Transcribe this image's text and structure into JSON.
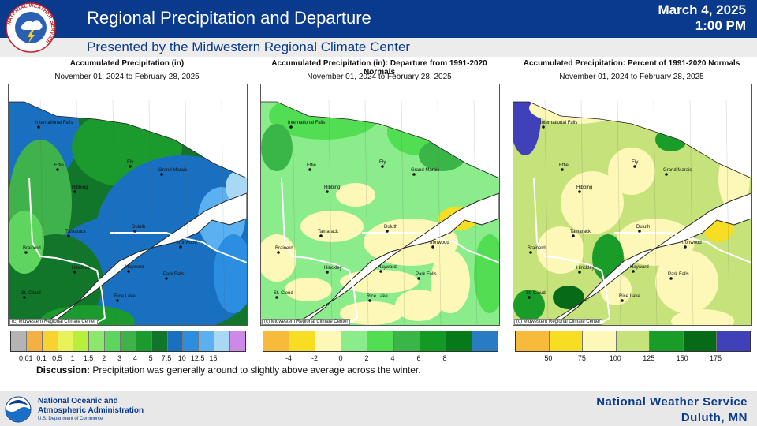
{
  "header": {
    "title": "Regional Precipitation and Departure",
    "date": "March 4, 2025",
    "time": "1:00 PM",
    "subtitle": "Presented by the Midwestern Regional Climate Center",
    "logo_text": "NATIONAL WEATHER SERVICE"
  },
  "panels": [
    {
      "title": "Accumulated Precipitation (in)",
      "dates": "November 01, 2024 to February 28, 2025",
      "credit": "(c) Midwestern Regional Climate Center",
      "legend_colors": [
        "#b4b4b4",
        "#f4b042",
        "#f7d230",
        "#e8f25a",
        "#b8ee3c",
        "#8ce86a",
        "#5ed55e",
        "#3fb24c",
        "#1b9a2e",
        "#11762a",
        "#1a70c0",
        "#2b8ee0",
        "#5ab0f0",
        "#a8d8f4",
        "#cc8ae6"
      ],
      "legend_labels": [
        "0.01",
        "0.1",
        "0.5",
        "1",
        "1.5",
        "2",
        "3",
        "4",
        "5",
        "7.5",
        "10",
        "12.5",
        "15"
      ]
    },
    {
      "title": "Accumulated Precipitation (in): Departure from 1991-2020 Normals",
      "dates": "November 01, 2024 to February 28, 2025",
      "credit": "(c) Midwestern Regional Climate Center",
      "legend_colors": [
        "#f8ba3a",
        "#f8de22",
        "#fdf7b8",
        "#8aec8a",
        "#52de52",
        "#3ab548",
        "#129a24",
        "#067a18",
        "#2a7cc2"
      ],
      "legend_labels": [
        "-4",
        "-2",
        "0",
        "2",
        "4",
        "6",
        "8"
      ]
    },
    {
      "title": "Accumulated Precipitation: Percent of 1991-2020 Normals",
      "dates": "November 01, 2024 to February 28, 2025",
      "credit": "(c) Midwestern Regional Climate Center",
      "legend_colors": [
        "#f8ba3a",
        "#f8de22",
        "#fdf7b8",
        "#c6e27a",
        "#1a9c28",
        "#066a16",
        "#4040b8"
      ],
      "legend_labels": [
        "50",
        "75",
        "100",
        "125",
        "150",
        "175"
      ]
    }
  ],
  "cities": [
    "International Falls",
    "Effie",
    "Ely",
    "Grand Marais",
    "Hibbing",
    "Duluth",
    "Tamarack",
    "Ironwood",
    "Brainerd",
    "Hinckley",
    "Hayward",
    "Park Falls",
    "St. Cloud",
    "Rice Lake"
  ],
  "discussion": {
    "label": "Discussion:",
    "text": " Precipitation was generally around to slightly above average across the winter."
  },
  "footer": {
    "noaa_line1": "National Oceanic and",
    "noaa_line2": "Atmospheric Administration",
    "noaa_dept": "U.S. Department of Commerce",
    "nws_line1": "National Weather Service",
    "nws_line2": "Duluth, MN"
  },
  "icons": [
    "nws-logo-icon",
    "noaa-logo-icon"
  ],
  "colors": {
    "brand_blue": "#0a3a8c",
    "lake": "#ffffff"
  }
}
